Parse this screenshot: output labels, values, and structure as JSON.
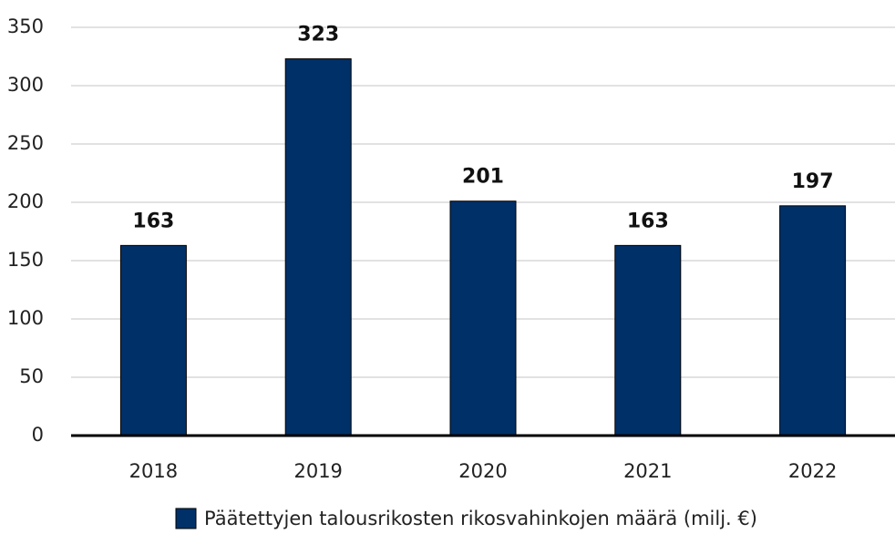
{
  "chart_data": {
    "type": "bar",
    "categories": [
      "2018",
      "2019",
      "2020",
      "2021",
      "2022"
    ],
    "series": [
      {
        "name": "Päätettyjen talousrikosten rikosvahinkojen määrä (milj. €)",
        "color": "#003068",
        "values": [
          163,
          323,
          201,
          163,
          197
        ]
      }
    ],
    "ylim": [
      0,
      350
    ],
    "yticks": [
      0,
      50,
      100,
      150,
      200,
      250,
      300,
      350
    ],
    "grid": true,
    "legend": "bottom"
  }
}
